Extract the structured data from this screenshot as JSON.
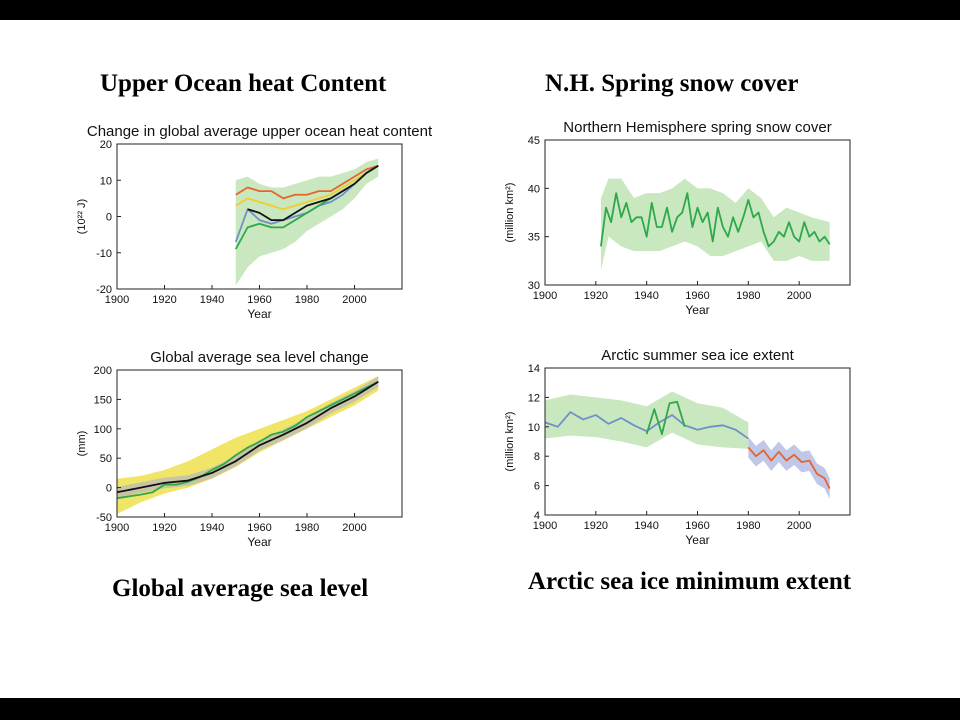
{
  "headings": {
    "top_left": "Upper Ocean heat Content",
    "top_right": "N.H. Spring snow cover",
    "bottom_left": "Global average sea level",
    "bottom_right": "Arctic sea ice minimum extent"
  },
  "chart_data": [
    {
      "id": "ohc",
      "type": "line",
      "title": "Change in global average upper ocean heat content",
      "xlabel": "Year",
      "ylabel": "(10²² J)",
      "xlim": [
        1900,
        2020
      ],
      "ylim": [
        -20,
        20
      ],
      "xticks": [
        1900,
        1920,
        1940,
        1960,
        1980,
        2000
      ],
      "yticks": [
        -20,
        -10,
        0,
        10,
        20
      ],
      "colors": {
        "band": "#bfe4b4",
        "orange": "#e8642c",
        "yellow": "#f2cc30",
        "blue": "#6f90c8",
        "green": "#2ea84a",
        "black": "#111111"
      },
      "band": {
        "x": [
          1950,
          1955,
          1960,
          1965,
          1970,
          1975,
          1980,
          1985,
          1990,
          1995,
          2000,
          2005,
          2010
        ],
        "lower": [
          -19,
          -14,
          -11,
          -10,
          -9,
          -7,
          -4,
          -2,
          0,
          2,
          5,
          9,
          11
        ],
        "upper": [
          10,
          11,
          9,
          8,
          8,
          9,
          10,
          11,
          11,
          12,
          13,
          15,
          16
        ]
      },
      "series": [
        {
          "color": "orange",
          "x": [
            1950,
            1955,
            1960,
            1965,
            1970,
            1975,
            1980,
            1985,
            1990,
            1995,
            2000,
            2005,
            2010
          ],
          "y": [
            6,
            8,
            7,
            7,
            5,
            6,
            6,
            7,
            7,
            9,
            11,
            13,
            14
          ]
        },
        {
          "color": "yellow",
          "x": [
            1950,
            1955,
            1960,
            1965,
            1970,
            1975,
            1980,
            1985,
            1990,
            1995,
            2000,
            2005,
            2010
          ],
          "y": [
            3,
            5,
            4,
            3,
            2,
            3,
            4,
            5,
            6,
            8,
            10,
            12,
            14
          ]
        },
        {
          "color": "blue",
          "x": [
            1950,
            1955,
            1960,
            1965,
            1970,
            1975,
            1980,
            1985,
            1990,
            1995,
            2000,
            2005,
            2010
          ],
          "y": [
            -7,
            2,
            -1,
            -2,
            -1,
            0,
            1,
            3,
            4,
            6,
            9,
            12,
            14
          ]
        },
        {
          "color": "green",
          "x": [
            1950,
            1955,
            1960,
            1965,
            1970,
            1975,
            1980,
            1985,
            1990,
            1995,
            2000,
            2005,
            2010
          ],
          "y": [
            -9,
            -3,
            -2,
            -3,
            -3,
            -1,
            1,
            3,
            5,
            7,
            9,
            12,
            14
          ]
        },
        {
          "color": "black",
          "x": [
            1955,
            1960,
            1965,
            1970,
            1975,
            1980,
            1985,
            1990,
            1995,
            2000,
            2005,
            2010
          ],
          "y": [
            2,
            1,
            -1,
            -1,
            1,
            3,
            4,
            5,
            7,
            9,
            12,
            14
          ]
        }
      ]
    },
    {
      "id": "snow",
      "type": "line",
      "title": "Northern Hemisphere spring snow cover",
      "xlabel": "Year",
      "ylabel": "(million km²)",
      "xlim": [
        1900,
        2020
      ],
      "ylim": [
        30,
        45
      ],
      "xticks": [
        1900,
        1920,
        1940,
        1960,
        1980,
        2000
      ],
      "yticks": [
        30,
        35,
        40,
        45
      ],
      "colors": {
        "band": "#bfe4b4",
        "green": "#2ea84a"
      },
      "band": {
        "x": [
          1922,
          1925,
          1930,
          1935,
          1940,
          1945,
          1950,
          1955,
          1960,
          1965,
          1970,
          1975,
          1980,
          1985,
          1990,
          1995,
          2000,
          2005,
          2012
        ],
        "lower": [
          31.5,
          35,
          34,
          33.5,
          33.5,
          33.5,
          34,
          34.5,
          34,
          33,
          33,
          33.5,
          34,
          34.5,
          32.5,
          32.5,
          33,
          32.5,
          32.5
        ],
        "upper": [
          39,
          41,
          41,
          39,
          39.5,
          39.5,
          40,
          41,
          40,
          40,
          39.5,
          38.5,
          40,
          39,
          37,
          38,
          37.5,
          37,
          36.5
        ]
      },
      "series": [
        {
          "color": "green",
          "x": [
            1922,
            1924,
            1926,
            1928,
            1930,
            1932,
            1934,
            1936,
            1938,
            1940,
            1942,
            1944,
            1946,
            1948,
            1950,
            1952,
            1954,
            1956,
            1958,
            1960,
            1962,
            1964,
            1966,
            1968,
            1970,
            1972,
            1974,
            1976,
            1978,
            1980,
            1982,
            1984,
            1986,
            1988,
            1990,
            1992,
            1994,
            1996,
            1998,
            2000,
            2002,
            2004,
            2006,
            2008,
            2010,
            2012
          ],
          "y": [
            34,
            38,
            36.5,
            39.5,
            37,
            38.5,
            36.5,
            37,
            37,
            35,
            38.5,
            36,
            36,
            38,
            35.5,
            37,
            37.5,
            39.5,
            36,
            38,
            36.5,
            37.5,
            34.5,
            38,
            36,
            35,
            37,
            35.5,
            37,
            38.8,
            37,
            37.5,
            35.5,
            34,
            34.5,
            35.5,
            35,
            36.5,
            35,
            34.5,
            36.5,
            35,
            35.5,
            34.5,
            35,
            34.2
          ]
        }
      ]
    },
    {
      "id": "sealevel",
      "type": "line",
      "title": "Global average sea level change",
      "xlabel": "Year",
      "ylabel": "(mm)",
      "xlim": [
        1900,
        2020
      ],
      "ylim": [
        -50,
        200
      ],
      "xticks": [
        1900,
        1920,
        1940,
        1960,
        1980,
        2000
      ],
      "yticks": [
        -50,
        0,
        50,
        100,
        150,
        200
      ],
      "colors": {
        "band": "#efe04c",
        "grayband": "#b9b9b9",
        "green": "#2ea84a",
        "black": "#111111",
        "blue": "#6f90c8",
        "orange": "#e8642c"
      },
      "band": {
        "x": [
          1900,
          1910,
          1920,
          1930,
          1940,
          1950,
          1960,
          1970,
          1980,
          1990,
          2000,
          2010
        ],
        "lower": [
          -45,
          -25,
          -10,
          0,
          15,
          35,
          60,
          80,
          100,
          120,
          140,
          165
        ],
        "upper": [
          15,
          20,
          30,
          45,
          65,
          85,
          100,
          115,
          130,
          150,
          170,
          190
        ]
      },
      "series": [
        {
          "color": "green",
          "x": [
            1900,
            1905,
            1910,
            1915,
            1920,
            1925,
            1930,
            1935,
            1940,
            1945,
            1950,
            1955,
            1960,
            1965,
            1970,
            1975,
            1980,
            1985,
            1990,
            1995,
            2000,
            2005,
            2010
          ],
          "y": [
            -18,
            -15,
            -12,
            -8,
            5,
            5,
            10,
            18,
            30,
            40,
            55,
            68,
            78,
            90,
            95,
            105,
            120,
            130,
            140,
            150,
            160,
            170,
            180
          ]
        },
        {
          "color": "black",
          "x": [
            1900,
            1910,
            1920,
            1930,
            1940,
            1950,
            1960,
            1970,
            1980,
            1990,
            2000,
            2010
          ],
          "y": [
            -8,
            0,
            8,
            12,
            25,
            45,
            72,
            90,
            110,
            135,
            155,
            180
          ]
        }
      ]
    },
    {
      "id": "seaice",
      "type": "line",
      "title": "Arctic summer sea ice extent",
      "xlabel": "Year",
      "ylabel": "(million km²)",
      "xlim": [
        1900,
        2020
      ],
      "ylim": [
        4,
        14
      ],
      "xticks": [
        1900,
        1920,
        1940,
        1960,
        1980,
        2000
      ],
      "yticks": [
        4,
        6,
        8,
        10,
        12,
        14
      ],
      "colors": {
        "band": "#bfe4b4",
        "blueband": "#b5bde3",
        "blue": "#6f90c8",
        "green": "#2ea84a",
        "orange": "#e8642c"
      },
      "band": {
        "x": [
          1900,
          1910,
          1920,
          1930,
          1940,
          1950,
          1960,
          1970,
          1980
        ],
        "lower": [
          9.2,
          9.4,
          9.3,
          9,
          8.6,
          9.6,
          8.8,
          8.6,
          8.5
        ],
        "upper": [
          11.8,
          12.2,
          12,
          11.8,
          11.4,
          12.4,
          11.6,
          11.3,
          10.3
        ]
      },
      "series": [
        {
          "color": "blue",
          "x": [
            1900,
            1905,
            1910,
            1915,
            1920,
            1925,
            1930,
            1935,
            1940,
            1945,
            1950,
            1955,
            1960,
            1965,
            1970,
            1975,
            1980
          ],
          "y": [
            10.3,
            10,
            11,
            10.5,
            10.8,
            10.2,
            10.6,
            10.1,
            9.7,
            10.3,
            10.8,
            10.1,
            9.8,
            10,
            10.1,
            9.8,
            9.2
          ]
        },
        {
          "color": "green",
          "x": [
            1940,
            1943,
            1946,
            1949,
            1952,
            1955
          ],
          "y": [
            9.5,
            11.2,
            9.5,
            11.6,
            11.7,
            10
          ]
        },
        {
          "color": "orange",
          "x": [
            1980,
            1983,
            1986,
            1989,
            1992,
            1995,
            1998,
            2001,
            2004,
            2007,
            2010,
            2012
          ],
          "y": [
            8.6,
            8,
            8.4,
            7.7,
            8.3,
            7.7,
            8.1,
            7.6,
            7.7,
            6.8,
            6.5,
            5.8
          ]
        }
      ]
    }
  ]
}
